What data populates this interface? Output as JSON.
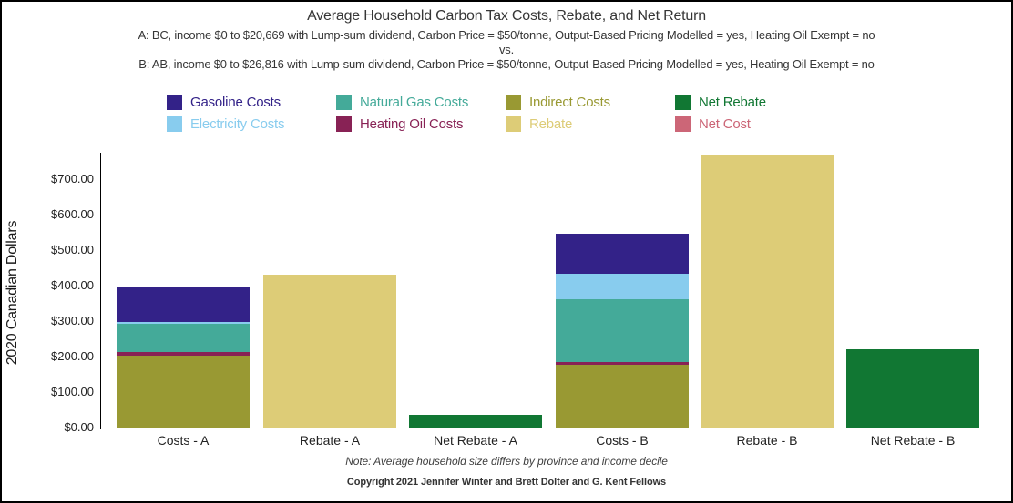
{
  "chart_data": {
    "type": "bar",
    "stacked": true,
    "title": "Average Household Carbon Tax Costs, Rebate, and Net Return",
    "subtitle_line_a": "A: BC, income $0 to $20,669 with Lump-sum dividend, Carbon Price = $50/tonne, Output-Based Pricing Modelled = yes, Heating Oil Exempt = no",
    "subtitle_separator": "vs.",
    "subtitle_line_b": "B: AB, income $0 to $26,816 with Lump-sum dividend, Carbon Price = $50/tonne, Output-Based Pricing Modelled = yes, Heating Oil Exempt = no",
    "ylabel": "2020 Canadian Dollars",
    "ylim": [
      0,
      775
    ],
    "grid": false,
    "legend_position": "top",
    "ytick_values": [
      0,
      100,
      200,
      300,
      400,
      500,
      600,
      700
    ],
    "ytick_labels": [
      "$0.00",
      "$100.00",
      "$200.00",
      "$300.00",
      "$400.00",
      "$500.00",
      "$600.00",
      "$700.00"
    ],
    "categories": [
      "Costs - A",
      "Rebate - A",
      "Net Rebate - A",
      "Costs - B",
      "Rebate - B",
      "Net Rebate - B"
    ],
    "series": [
      {
        "name": "Indirect Costs",
        "color": "#999933",
        "values": [
          203,
          0,
          0,
          176,
          0,
          0
        ]
      },
      {
        "name": "Heating Oil Costs",
        "color": "#882255",
        "values": [
          9,
          0,
          0,
          9,
          0,
          0
        ]
      },
      {
        "name": "Natural Gas Costs",
        "color": "#44AA99",
        "values": [
          80,
          0,
          0,
          176,
          0,
          0
        ]
      },
      {
        "name": "Electricity Costs",
        "color": "#88CCEE",
        "values": [
          6,
          0,
          0,
          73,
          0,
          0
        ]
      },
      {
        "name": "Gasoline Costs",
        "color": "#332288",
        "values": [
          97,
          0,
          0,
          112,
          0,
          0
        ]
      },
      {
        "name": "Rebate",
        "color": "#DDCC77",
        "values": [
          0,
          432,
          0,
          0,
          768,
          0
        ]
      },
      {
        "name": "Net Rebate",
        "color": "#117733",
        "values": [
          0,
          0,
          37,
          0,
          0,
          220
        ]
      },
      {
        "name": "Net Cost",
        "color": "#CC6677",
        "values": [
          0,
          0,
          0,
          0,
          0,
          0
        ]
      }
    ],
    "legend": [
      {
        "label": "Gasoline Costs",
        "color": "#332288"
      },
      {
        "label": "Natural Gas Costs",
        "color": "#44AA99"
      },
      {
        "label": "Indirect Costs",
        "color": "#999933"
      },
      {
        "label": "Net Rebate",
        "color": "#117733"
      },
      {
        "label": "Electricity Costs",
        "color": "#88CCEE"
      },
      {
        "label": "Heating Oil Costs",
        "color": "#882255"
      },
      {
        "label": "Rebate",
        "color": "#DDCC77"
      },
      {
        "label": "Net Cost",
        "color": "#CC6677"
      }
    ],
    "footnote": "Note: Average household size differs by province and income decile",
    "copyright": "Copyright 2021 Jennifer Winter and Brett Dolter and G. Kent Fellows"
  }
}
